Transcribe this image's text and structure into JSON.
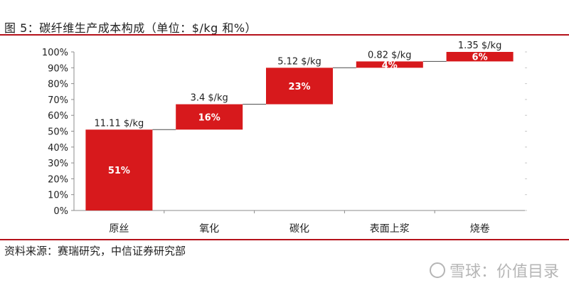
{
  "page": {
    "title": "图 5：碳纤维生产成本构成（单位：$/kg 和%）",
    "source": "资料来源：赛瑞研究，中信证券研究部",
    "watermark": "雪球：价值目录"
  },
  "colors": {
    "accent": "#b5121b",
    "bar": "#d7191c",
    "axis": "#8c8c8c",
    "text": "#1f1f1f"
  },
  "chart_data": {
    "type": "bar",
    "subtype": "waterfall",
    "categories": [
      "原丝",
      "氧化",
      "碳化",
      "表面上浆",
      "烧卷"
    ],
    "values": [
      51,
      16,
      23,
      4,
      6
    ],
    "bar_labels": [
      "51%",
      "16%",
      "23%",
      "4%",
      "6%"
    ],
    "cost_labels": [
      "11.11 $/kg",
      "3.4 $/kg",
      "5.12 $/kg",
      "0.82 $/kg",
      "1.35 $/kg"
    ],
    "yticks": [
      "0%",
      "10%",
      "20%",
      "30%",
      "40%",
      "50%",
      "60%",
      "70%",
      "80%",
      "90%",
      "100%"
    ],
    "ylim": [
      0,
      100
    ],
    "grid": false,
    "legend": "none"
  }
}
